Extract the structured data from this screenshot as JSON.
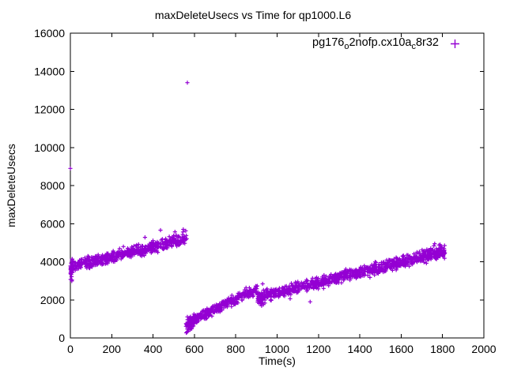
{
  "chart_data": {
    "type": "scatter",
    "title": "maxDeleteUsecs vs Time for qp1000.L6",
    "xlabel": "Time(s)",
    "ylabel": "maxDeleteUsecs",
    "xlim": [
      0,
      2000
    ],
    "ylim": [
      0,
      16000
    ],
    "x_ticks": [
      0,
      200,
      400,
      600,
      800,
      1000,
      1200,
      1400,
      1600,
      1800,
      2000
    ],
    "y_ticks": [
      0,
      2000,
      4000,
      6000,
      8000,
      10000,
      12000,
      14000,
      16000
    ],
    "grid": false,
    "background_color": "#ffffff",
    "axis_color": "#000000",
    "legend": {
      "position": "top-right-inside",
      "marker": "plus",
      "marker_color": "#9400D3",
      "label_plain": "pg176_o2nofp.cx10a_c8r32",
      "parts": {
        "p1": "pg176",
        "sub1": "o",
        "p2": "2nofp.cx10a",
        "sub2": "c",
        "p3": "8r32"
      }
    },
    "series": [
      {
        "name": "pg176_o2nofp.cx10a_c8r32",
        "marker": "plus",
        "color": "#9400D3",
        "description": "Three ascending sawtooth bands of max delete latency over time, with one high outlier near t=566s",
        "trend_segments": [
          {
            "x_start": 0,
            "x_end": 563,
            "y_start": 3750,
            "y_end": 5230,
            "noise": 150,
            "points": 560
          },
          {
            "x_start": 0,
            "x_end": 10,
            "y_start": 3700,
            "y_end": 3700,
            "noise": 280,
            "points": 30
          },
          {
            "x_start": 558,
            "x_end": 905,
            "y_start": 780,
            "y_end": 2600,
            "noise": 130,
            "points": 340
          },
          {
            "x_start": 560,
            "x_end": 598,
            "y_start": 650,
            "y_end": 900,
            "noise": 190,
            "points": 40
          },
          {
            "x_start": 905,
            "x_end": 1812,
            "y_start": 2130,
            "y_end": 4550,
            "noise": 140,
            "points": 900
          },
          {
            "x_start": 906,
            "x_end": 942,
            "y_start": 1950,
            "y_end": 2080,
            "noise": 170,
            "points": 22
          },
          {
            "x_start": 1705,
            "x_end": 1812,
            "y_start": 4420,
            "y_end": 4560,
            "noise": 170,
            "points": 60
          }
        ],
        "outliers": [
          [
            0,
            8900
          ],
          [
            566,
            13400
          ],
          [
            567,
            350
          ],
          [
            579,
            430
          ],
          [
            436,
            5660
          ],
          [
            546,
            5700
          ],
          [
            506,
            5570
          ],
          [
            558,
            5620
          ],
          [
            361,
            5280
          ],
          [
            1100,
            2950
          ],
          [
            1160,
            1900
          ],
          [
            1063,
            2060
          ],
          [
            930,
            2840
          ],
          [
            1762,
            4950
          ],
          [
            1791,
            4830
          ]
        ]
      }
    ]
  }
}
